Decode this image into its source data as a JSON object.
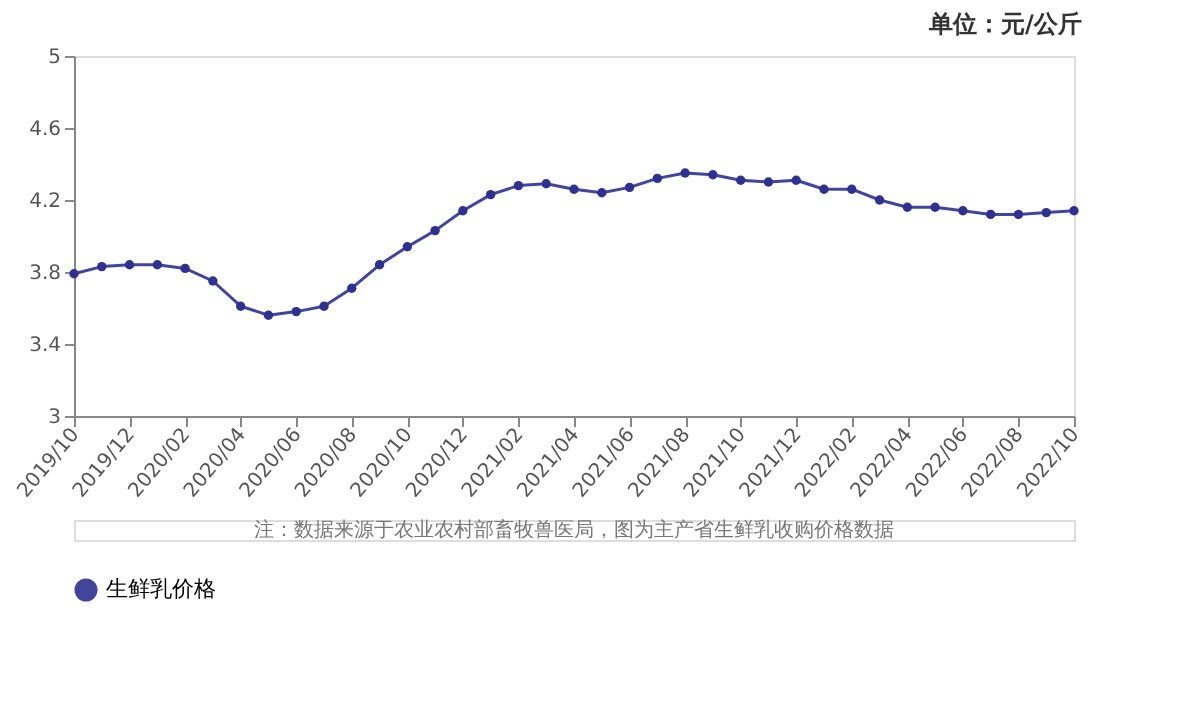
{
  "chart_data": {
    "type": "line",
    "categories": [
      "2019/10",
      null,
      "2019/12",
      null,
      "2020/02",
      null,
      "2020/04",
      null,
      "2020/06",
      null,
      "2020/08",
      null,
      "2020/10",
      null,
      "2020/12",
      null,
      "2021/02",
      null,
      "2021/04",
      null,
      "2021/06",
      null,
      "2021/08",
      null,
      "2021/10",
      null,
      "2021/12",
      null,
      "2022/02",
      null,
      "2022/04",
      null,
      "2022/06",
      null,
      "2022/08",
      null,
      "2022/10"
    ],
    "series": [
      {
        "name": "生鲜乳价格",
        "color": "#2e3192",
        "values": [
          3.79,
          3.83,
          3.84,
          3.84,
          3.82,
          3.75,
          3.61,
          3.56,
          3.58,
          3.61,
          3.71,
          3.84,
          3.94,
          4.03,
          4.14,
          4.23,
          4.28,
          4.29,
          4.26,
          4.24,
          4.27,
          4.32,
          4.35,
          4.34,
          4.31,
          4.3,
          4.31,
          4.26,
          4.26,
          4.2,
          4.16,
          4.16,
          4.14,
          4.12,
          4.12,
          4.13,
          4.14
        ]
      }
    ],
    "ylim": [
      3,
      5
    ],
    "yticks": [
      3,
      3.4,
      3.8,
      4.2,
      4.6,
      5
    ],
    "grid": false,
    "legend": "bottom",
    "marker": "circle",
    "line_style": "solid",
    "annotations": [
      "单位：元/公斤",
      "注：数据来源于农业农村部畜牧兽医局，图为主产省生鲜乳收购价格数据"
    ]
  }
}
